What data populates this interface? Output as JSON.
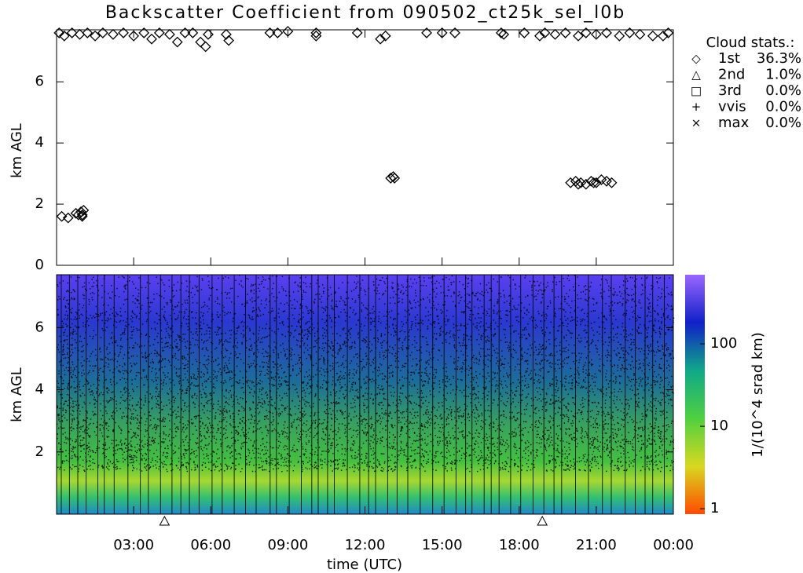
{
  "chart_data": [
    {
      "type": "scatter",
      "title": "Backscatter Coefficient from 090502_ct25k_sel_l0b",
      "ylabel": "km AGL",
      "xlim": [
        0,
        24
      ],
      "ylim": [
        0,
        7.7
      ],
      "yticks": [
        0,
        2,
        4,
        6
      ],
      "series": [
        {
          "name": "1st",
          "symbol": "diamond",
          "color": "#000000",
          "x": [
            0.1,
            0.3,
            0.6,
            0.9,
            1.2,
            1.5,
            1.8,
            2.2,
            2.6,
            3.0,
            3.4,
            3.7,
            4.0,
            4.4,
            4.7,
            5.0,
            5.3,
            5.6,
            5.8,
            5.9,
            6.6,
            6.7,
            8.3,
            8.6,
            9.0,
            10.1,
            10.1,
            11.7,
            12.6,
            12.8,
            14.4,
            15.0,
            15.5,
            17.3,
            17.4,
            18.2,
            18.8,
            19.0,
            19.4,
            19.8,
            20.3,
            20.6,
            21.0,
            21.4,
            21.9,
            22.3,
            22.7,
            23.2,
            23.6,
            23.8,
            0.2,
            0.45,
            0.75,
            0.85,
            0.95,
            1.0,
            1.05,
            1.0,
            13.0,
            13.1,
            13.15,
            20.0,
            20.2,
            20.4,
            20.6,
            20.8,
            21.0,
            21.2,
            21.4,
            21.6,
            20.3,
            20.9
          ],
          "values": [
            7.6,
            7.5,
            7.6,
            7.55,
            7.6,
            7.5,
            7.6,
            7.55,
            7.6,
            7.5,
            7.6,
            7.4,
            7.6,
            7.55,
            7.3,
            7.6,
            7.6,
            7.3,
            7.15,
            7.55,
            7.55,
            7.35,
            7.6,
            7.6,
            7.65,
            7.5,
            7.6,
            7.6,
            7.4,
            7.5,
            7.6,
            7.6,
            7.6,
            7.6,
            7.55,
            7.6,
            7.5,
            7.6,
            7.55,
            7.6,
            7.5,
            7.6,
            7.55,
            7.6,
            7.5,
            7.6,
            7.55,
            7.5,
            7.5,
            7.6,
            1.6,
            1.55,
            1.7,
            1.65,
            1.75,
            1.65,
            1.8,
            1.6,
            2.85,
            2.9,
            2.85,
            2.7,
            2.75,
            2.7,
            2.65,
            2.75,
            2.7,
            2.8,
            2.75,
            2.7,
            2.65,
            2.7
          ]
        }
      ],
      "cloud_stats": {
        "title": "Cloud stats.:",
        "entries": [
          {
            "symbol": "◇",
            "name": "1st",
            "value": 36.3,
            "value_label": "36.3%"
          },
          {
            "symbol": "△",
            "name": "2nd",
            "value": 1.0,
            "value_label": "1.0%"
          },
          {
            "symbol": "□",
            "name": "3rd",
            "value": 0.0,
            "value_label": "0.0%"
          },
          {
            "symbol": "+",
            "name": "vvis",
            "value": 0.0,
            "value_label": "0.0%"
          },
          {
            "symbol": "×",
            "name": "max",
            "value": 0.0,
            "value_label": "0.0%"
          }
        ]
      }
    },
    {
      "type": "heatmap",
      "xlabel": "time (UTC)",
      "ylabel": "km AGL",
      "xlim": [
        0,
        24
      ],
      "ylim": [
        0,
        7.7
      ],
      "xticks": [
        {
          "value": 3,
          "label": "03:00"
        },
        {
          "value": 6,
          "label": "06:00"
        },
        {
          "value": 9,
          "label": "09:00"
        },
        {
          "value": 12,
          "label": "12:00"
        },
        {
          "value": 15,
          "label": "15:00"
        },
        {
          "value": 18,
          "label": "18:00"
        },
        {
          "value": 21,
          "label": "21:00"
        },
        {
          "value": 24,
          "label": "00:00"
        }
      ],
      "yticks": [
        2,
        4,
        6
      ],
      "triangles": [
        4.2,
        18.9
      ],
      "colorbar": {
        "label": "1/(10^4 srad km)",
        "log": true,
        "lim": [
          0.86,
          690
        ],
        "ticks": [
          1,
          10,
          100
        ],
        "colors": [
          "#ff4a00",
          "#d8d820",
          "#50d040",
          "#10a888",
          "#1020c8",
          "#9a66ff"
        ]
      }
    }
  ]
}
